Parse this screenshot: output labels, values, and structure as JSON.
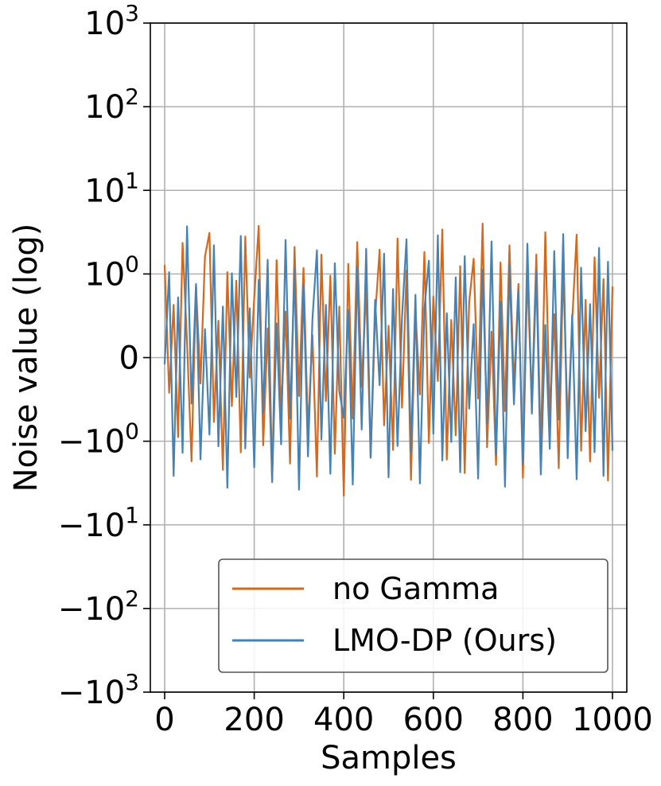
{
  "chart_data": {
    "type": "line",
    "title": "",
    "xlabel": "Samples",
    "ylabel": "Noise value (log)",
    "xlim": [
      -32,
      1032
    ],
    "xticks": [
      0,
      200,
      400,
      600,
      800,
      1000
    ],
    "yscale": "symlog",
    "ylim": [
      -1000,
      1000
    ],
    "yticks": [
      {
        "value": 1000,
        "base": "10",
        "exp": "3"
      },
      {
        "value": 100,
        "base": "10",
        "exp": "2"
      },
      {
        "value": 10,
        "base": "10",
        "exp": "1"
      },
      {
        "value": 1,
        "base": "10",
        "exp": "0"
      },
      {
        "value": 0,
        "base": "0",
        "exp": ""
      },
      {
        "value": -1,
        "base": "−10",
        "exp": "0"
      },
      {
        "value": -10,
        "base": "−10",
        "exp": "1"
      },
      {
        "value": -100,
        "base": "−10",
        "exp": "2"
      },
      {
        "value": -1000,
        "base": "−10",
        "exp": "3"
      }
    ],
    "grid": true,
    "legend_position": "lower-right",
    "series": [
      {
        "name": "no Gamma",
        "color": "#d2691e",
        "n_samples": 1001,
        "samples_shown": "0-1000, step 10",
        "values": [
          1.28,
          -0.42,
          0.63,
          -0.95,
          2.35,
          0.18,
          -1.74,
          0.86,
          -0.31,
          1.62,
          3.1,
          -0.77,
          0.44,
          -2.2,
          1.05,
          -0.58,
          0.92,
          -1.36,
          2.8,
          -0.24,
          0.71,
          3.75,
          -1.12,
          0.35,
          -3.1,
          1.46,
          -0.67,
          0.55,
          -1.85,
          2.1,
          -0.46,
          1.18,
          -0.89,
          0.27,
          -2.65,
          1.7,
          -0.52,
          0.98,
          -1.41,
          0.61,
          -4.5,
          1.32,
          -0.73,
          2.4,
          -0.35,
          0.84,
          -1.58,
          0.49,
          1.95,
          -0.81,
          0.38,
          -1.27,
          2.65,
          -0.6,
          1.1,
          -2.9,
          0.57,
          -0.44,
          1.83,
          -1.05,
          0.73,
          -0.28,
          3.4,
          -1.66,
          0.45,
          -0.93,
          1.24,
          -2.4,
          0.66,
          1.52,
          -0.49,
          4.0,
          -1.18,
          0.31,
          -1.92,
          1.37,
          -0.64,
          2.2,
          -0.37,
          0.88,
          -2.75,
          1.09,
          -0.55,
          1.71,
          -1.44,
          3.15,
          -0.7,
          0.52,
          -2.1,
          1.26,
          -0.83,
          0.43,
          2.95,
          -1.3,
          0.69,
          -1.75,
          1.58,
          -0.48,
          0.94,
          -2.95,
          0.85
        ]
      },
      {
        "name": "LMO-DP (Ours)",
        "color": "#4682b4",
        "n_samples": 1001,
        "samples_shown": "0-1000, step 10",
        "values": [
          -0.08,
          1.05,
          -2.6,
          0.72,
          -1.38,
          3.7,
          -0.55,
          0.88,
          -1.65,
          0.34,
          -0.92,
          2.2,
          -1.15,
          0.61,
          -3.6,
          1.02,
          -0.47,
          2.85,
          -1.22,
          0.59,
          -2.05,
          0.93,
          -0.66,
          1.48,
          -3.0,
          0.41,
          -1.09,
          2.55,
          -0.73,
          1.16,
          -3.8,
          0.87,
          -1.52,
          0.46,
          1.92,
          -0.98,
          0.63,
          -2.45,
          1.34,
          -0.4,
          -0.72,
          0.57,
          -3.3,
          1.21,
          -0.86,
          2.0,
          -1.57,
          0.69,
          -0.33,
          1.75,
          -2.7,
          0.82,
          -1.14,
          0.48,
          2.6,
          -1.36,
          0.75,
          -3.2,
          0.58,
          1.44,
          -0.91,
          2.9,
          -1.7,
          0.53,
          -1.02,
          0.96,
          -2.35,
          1.63,
          -0.61,
          0.4,
          -2.8,
          1.13,
          -0.79,
          2.45,
          -1.48,
          0.67,
          -3.5,
          1.28,
          -0.56,
          0.81,
          -1.9,
          2.3,
          -0.67,
          1.07,
          -2.5,
          0.39,
          -1.23,
          1.88,
          -0.74,
          3.0,
          -1.6,
          0.51,
          -2.85,
          1.19,
          -0.88,
          0.64,
          -1.35,
          2.05,
          -2.6,
          1.4,
          -1.3
        ]
      }
    ]
  }
}
